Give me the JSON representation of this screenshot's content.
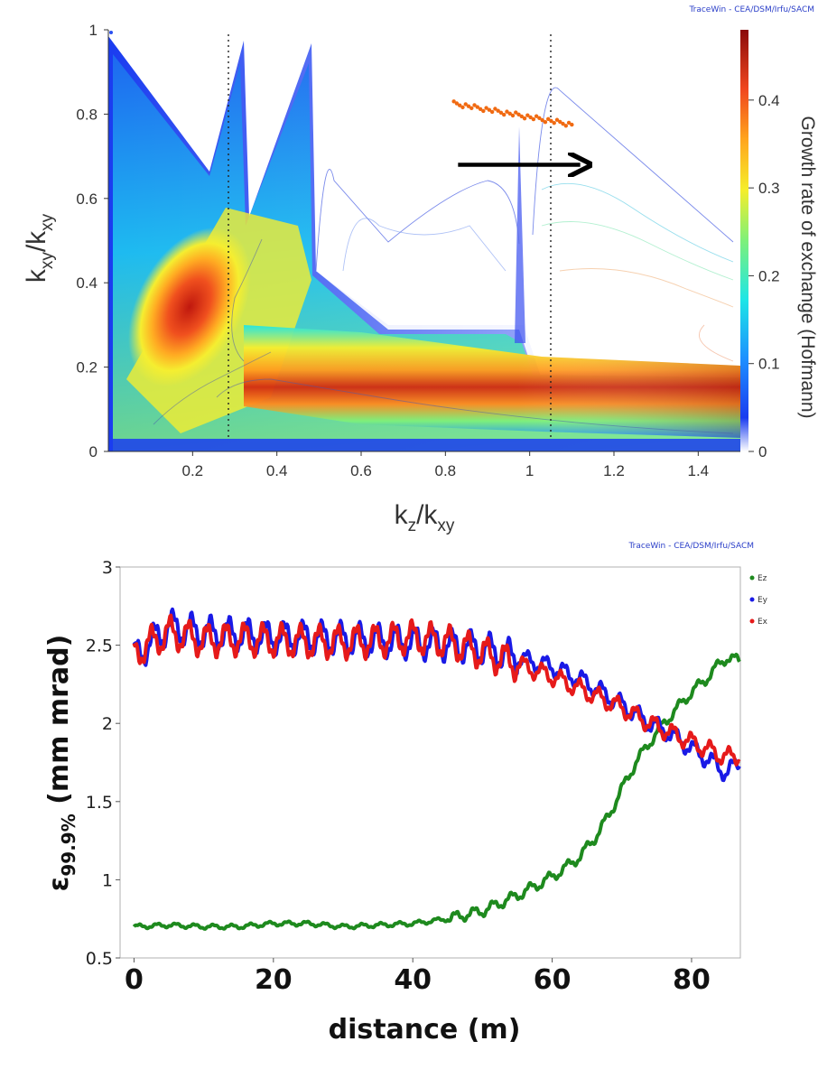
{
  "chart_data": [
    {
      "type": "heatmap",
      "watermark": "TraceWin - CEA/DSM/Irfu/SACM",
      "xlabel": "k",
      "xlabel_sub": "z",
      "xlabel_sep": "/k",
      "xlabel_sub2": "xy",
      "ylabel": "k",
      "ylabel_sub": "xy",
      "ylabel_sep": "/k",
      "ylabel_sub2": "xy",
      "colorbar_label": "Growth rate of exchange (Hofmann)",
      "xlim": [
        0.0,
        1.5
      ],
      "ylim": [
        0,
        1
      ],
      "clim": [
        0,
        0.48
      ],
      "xticks": [
        0.2,
        0.4,
        0.6,
        0.8,
        1,
        1.2,
        1.4
      ],
      "xtick_labels": [
        "0.2",
        "0.4",
        "0.6",
        "0.8",
        "1",
        "1.2",
        "1.4"
      ],
      "yticks": [
        0,
        0.2,
        0.4,
        0.6,
        0.8,
        1
      ],
      "ytick_labels": [
        "0",
        "0.2",
        "0.4",
        "0.6",
        "0.8",
        "1"
      ],
      "cticks": [
        0,
        0.1,
        0.2,
        0.3,
        0.4
      ],
      "ctick_labels": [
        "0",
        "0.1",
        "0.2",
        "0.3",
        "0.4"
      ],
      "dotted_lines_x": [
        0.285,
        1.05
      ],
      "working_points": {
        "x_start": 0.82,
        "y_start": 0.825,
        "x_end": 1.1,
        "y_end": 0.775
      },
      "arrow": {
        "x_start": 0.83,
        "x_end": 1.12,
        "y": 0.68
      }
    },
    {
      "type": "line",
      "watermark": "TraceWin - CEA/DSM/Irfu/SACM",
      "xlabel": "distance (m)",
      "ylabel": "ε",
      "ylabel_sub": "99.9%",
      "ylabel_unit": " (mm mrad)",
      "xlim": [
        -2,
        87
      ],
      "ylim": [
        0.5,
        3
      ],
      "xticks": [
        0,
        20,
        40,
        60,
        80
      ],
      "xtick_labels": [
        "0",
        "20",
        "40",
        "60",
        "80"
      ],
      "yticks": [
        0.5,
        1,
        1.5,
        2,
        2.5,
        3
      ],
      "ytick_labels": [
        "0.5",
        "1",
        "1.5",
        "2",
        "2.5",
        "3"
      ],
      "legend_position": "top-right",
      "series": [
        {
          "name": "Ez",
          "color": "#1e8a1e",
          "x": [
            0,
            5,
            10,
            15,
            20,
            25,
            30,
            35,
            40,
            45,
            50,
            52,
            55,
            58,
            60,
            62,
            64,
            66,
            68,
            70,
            72,
            74,
            76,
            78,
            80,
            82,
            84,
            85,
            87
          ],
          "y": [
            0.7,
            0.71,
            0.7,
            0.7,
            0.72,
            0.72,
            0.7,
            0.71,
            0.72,
            0.75,
            0.8,
            0.84,
            0.9,
            0.97,
            1.02,
            1.08,
            1.15,
            1.26,
            1.4,
            1.58,
            1.75,
            1.88,
            2.0,
            2.1,
            2.2,
            2.28,
            2.38,
            2.42,
            2.4
          ]
        },
        {
          "name": "Ey",
          "color": "#1a1ae6",
          "x": [
            0,
            5,
            10,
            15,
            20,
            25,
            30,
            35,
            40,
            45,
            50,
            55,
            60,
            65,
            70,
            72,
            74,
            76,
            78,
            80,
            82,
            84,
            85,
            86,
            87
          ],
          "y": [
            2.42,
            2.62,
            2.58,
            2.57,
            2.55,
            2.55,
            2.54,
            2.53,
            2.52,
            2.5,
            2.48,
            2.42,
            2.36,
            2.26,
            2.12,
            2.06,
            2.0,
            1.96,
            1.9,
            1.84,
            1.78,
            1.72,
            1.68,
            1.72,
            1.76
          ]
        },
        {
          "name": "Ex",
          "color": "#e61a1a",
          "x": [
            0,
            5,
            10,
            15,
            20,
            25,
            30,
            35,
            40,
            45,
            50,
            55,
            60,
            65,
            70,
            72,
            74,
            76,
            78,
            80,
            82,
            84,
            86,
            87
          ],
          "y": [
            2.45,
            2.58,
            2.53,
            2.54,
            2.53,
            2.52,
            2.52,
            2.53,
            2.55,
            2.52,
            2.45,
            2.38,
            2.3,
            2.2,
            2.1,
            2.05,
            2.0,
            1.96,
            1.92,
            1.88,
            1.84,
            1.8,
            1.78,
            1.8
          ]
        }
      ]
    }
  ]
}
